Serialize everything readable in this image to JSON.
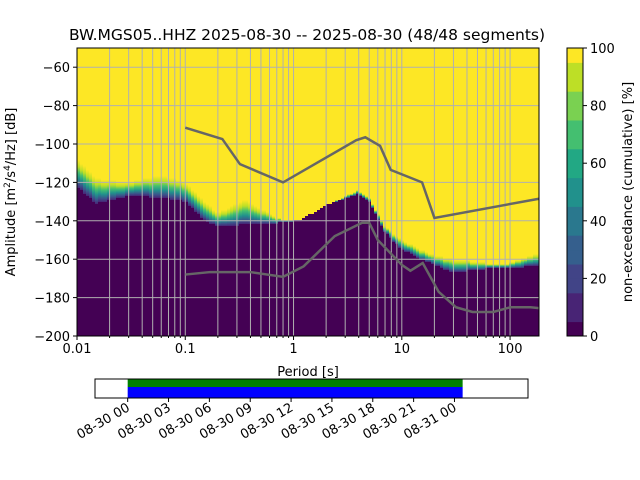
{
  "chart_data": {
    "type": "heatmap",
    "title": "BW.MGS05..HHZ   2025-08-30 -- 2025-08-30  (48/48 segments)",
    "xlabel": "Period [s]",
    "ylabel": "Amplitude [m²/s⁴/Hz] [dB]",
    "xscale": "log",
    "xlim": [
      0.01,
      185
    ],
    "ylim": [
      -200,
      -50
    ],
    "x_ticks": [
      {
        "v": 0.01,
        "label": "0.01"
      },
      {
        "v": 0.1,
        "label": "0.1"
      },
      {
        "v": 1,
        "label": "1"
      },
      {
        "v": 10,
        "label": "10"
      },
      {
        "v": 100,
        "label": "100"
      }
    ],
    "y_ticks": [
      {
        "v": -60,
        "label": "−60"
      },
      {
        "v": -80,
        "label": "−80"
      },
      {
        "v": -100,
        "label": "−100"
      },
      {
        "v": -120,
        "label": "−120"
      },
      {
        "v": -140,
        "label": "−140"
      },
      {
        "v": -160,
        "label": "−160"
      },
      {
        "v": -180,
        "label": "−180"
      },
      {
        "v": -200,
        "label": "−200"
      }
    ],
    "grid": true,
    "ppsd_band": {
      "period": [
        0.01,
        0.015,
        0.03,
        0.06,
        0.1,
        0.15,
        0.2,
        0.35,
        0.8,
        1.2,
        2,
        4,
        5,
        7,
        10,
        15,
        20,
        30,
        60,
        100,
        185
      ],
      "upper_db": [
        -108,
        -118,
        -120,
        -116,
        -120,
        -130,
        -136,
        -129,
        -140,
        -139,
        -132,
        -124,
        -128,
        -143,
        -150,
        -155,
        -158,
        -160,
        -162,
        -162,
        -157
      ],
      "lower_db": [
        -122,
        -131,
        -127,
        -128,
        -130,
        -140,
        -143,
        -142,
        -141,
        -139,
        -132,
        -126,
        -130,
        -146,
        -155,
        -160,
        -163,
        -167,
        -165,
        -165,
        -163
      ]
    },
    "noise_models": [
      {
        "name": "NHNM",
        "period": [
          0.1,
          0.22,
          0.32,
          0.8,
          3.8,
          4.6,
          6.3,
          7.9,
          15.4,
          20,
          185
        ],
        "db": [
          -91.5,
          -97.4,
          -110.5,
          -120,
          -98,
          -96.5,
          -101,
          -113.5,
          -120,
          -138.5,
          -128.5
        ]
      },
      {
        "name": "NLNM",
        "period": [
          0.1,
          0.17,
          0.4,
          0.8,
          1.24,
          2.4,
          4.3,
          5,
          6,
          10,
          12,
          15.6,
          21.9,
          31.6,
          45,
          70,
          101,
          154,
          185
        ],
        "db": [
          -168,
          -166.7,
          -166.7,
          -169.2,
          -163.7,
          -148,
          -141,
          -141,
          -150,
          -163,
          -166,
          -162,
          -177,
          -185,
          -187.5,
          -187.5,
          -185,
          -185,
          -185.5
        ]
      }
    ],
    "colorbar": {
      "label": "non-exceedance (cumulative) [%]",
      "range": [
        0,
        100
      ],
      "ticks": [
        {
          "v": 0,
          "label": "0"
        },
        {
          "v": 20,
          "label": "20"
        },
        {
          "v": 40,
          "label": "40"
        },
        {
          "v": 60,
          "label": "60"
        },
        {
          "v": 80,
          "label": "80"
        },
        {
          "v": 100,
          "label": "100"
        }
      ]
    },
    "timeline": {
      "tick_labels": [
        "08-30 00",
        "08-30 03",
        "08-30 06",
        "08-30 09",
        "08-30 12",
        "08-30 15",
        "08-30 18",
        "08-30 21",
        "08-31 00"
      ],
      "range_hours": [
        -2.4,
        29.4
      ],
      "coverage_hours": [
        0,
        24.6
      ],
      "colors": {
        "data": "#008000",
        "used": "#0000ff"
      }
    },
    "colors": {
      "low": "#440154",
      "high": "#fde725",
      "model_line": "#666666",
      "grid": "#b0b0b0"
    }
  }
}
